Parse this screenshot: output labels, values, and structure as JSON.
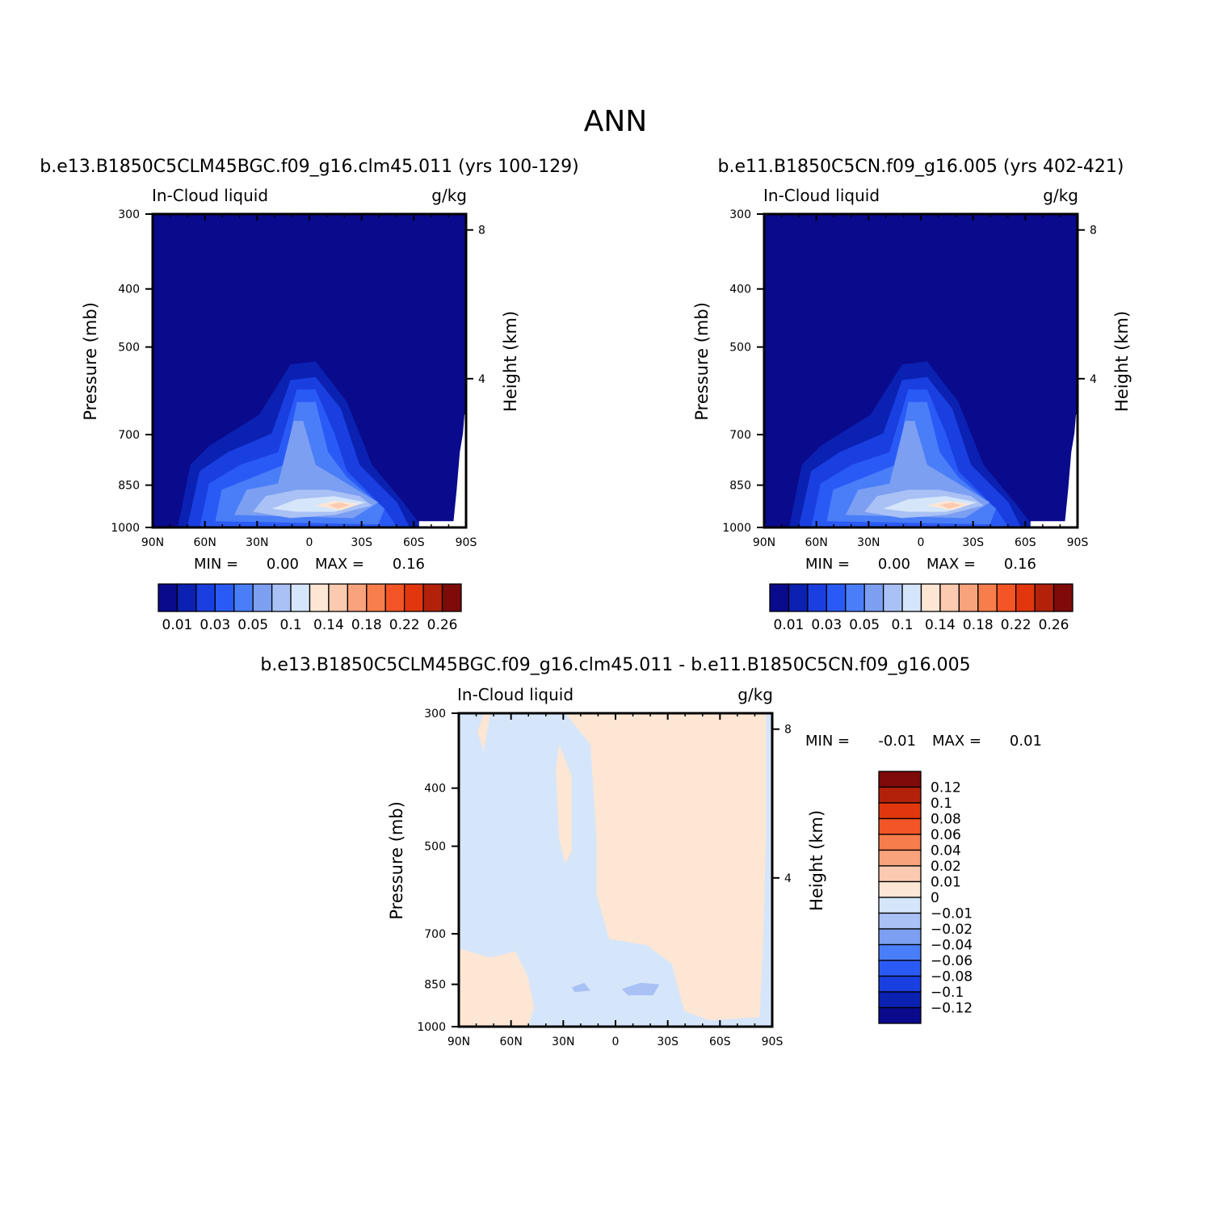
{
  "figure": {
    "title": "ANN"
  },
  "lat_tick_labels": [
    "90N",
    "60N",
    "30N",
    "0",
    "30S",
    "60S",
    "90S"
  ],
  "pressure_tick_labels": [
    "300",
    "400",
    "500",
    "700",
    "850",
    "1000"
  ],
  "height_tick_labels": [
    "8",
    "4"
  ],
  "axis_labels": {
    "left": "Pressure (mb)",
    "right": "Height (km)"
  },
  "colormaps": {
    "abs_colors": [
      "#0a0a8c",
      "#0a21b2",
      "#1a3fe0",
      "#2a5af6",
      "#4a7ef8",
      "#7c9ff2",
      "#a9c1f5",
      "#d6e6fa",
      "#fee6d4",
      "#fccab0",
      "#f9a37c",
      "#f77d4c",
      "#f45526",
      "#e2360e",
      "#b3210a",
      "#7e0a0a"
    ],
    "abs_labels": [
      "0.01",
      "0.03",
      "0.05",
      "0.1",
      "0.14",
      "0.18",
      "0.22",
      "0.26"
    ],
    "diff_colors": [
      "#0a0a8c",
      "#0a21b2",
      "#1a3fe0",
      "#2a5af6",
      "#4a7ef8",
      "#7c9ff2",
      "#a9c1f5",
      "#d6e6fa",
      "#fee6d4",
      "#fccab0",
      "#f9a37c",
      "#f77d4c",
      "#f45526",
      "#e2360e",
      "#b3210a",
      "#7e0a0a"
    ],
    "diff_labels": [
      "0.12",
      "0.1",
      "0.08",
      "0.06",
      "0.04",
      "0.02",
      "0.01",
      "0",
      "-0.01",
      "-0.02",
      "-0.04",
      "-0.06",
      "-0.08",
      "-0.1",
      "-0.12"
    ]
  },
  "panels": [
    {
      "title": "b.e13.B1850C5CLM45BGC.f09_g16.clm45.011 (yrs 100-129)",
      "left_sub": "In-Cloud liquid",
      "right_sub": "g/kg",
      "min_label": "MIN =",
      "min_value": "0.00",
      "max_label": "MAX =",
      "max_value": "0.16"
    },
    {
      "title": "b.e11.B1850C5CN.f09_g16.005 (yrs 402-421)",
      "left_sub": "In-Cloud liquid",
      "right_sub": "g/kg",
      "min_label": "MIN =",
      "min_value": "0.00",
      "max_label": "MAX =",
      "max_value": "0.16"
    },
    {
      "title": "b.e13.B1850C5CLM45BGC.f09_g16.clm45.011 - b.e11.B1850C5CN.f09_g16.005",
      "left_sub": "In-Cloud liquid",
      "right_sub": "g/kg",
      "min_label": "MIN =",
      "min_value": "-0.01",
      "max_label": "MAX =",
      "max_value": "0.01"
    }
  ],
  "chart_data": [
    {
      "type": "heatmap",
      "title": "b.e13.B1850C5CLM45BGC.f09_g16.clm45.011 (yrs 100-129)",
      "variable": "In-Cloud liquid",
      "units": "g/kg",
      "x_ticks": [
        "90N",
        "60N",
        "30N",
        "0",
        "30S",
        "60S",
        "90S"
      ],
      "y_ticks_pressure_mb": [
        300,
        400,
        500,
        700,
        850,
        1000
      ],
      "y_ticks_height_km": [
        8,
        4
      ],
      "ylabel": "Pressure (mb)",
      "ylabel_right": "Height (km)",
      "min": 0.0,
      "max": 0.16,
      "colorbar_labels": [
        0.01,
        0.03,
        0.05,
        0.1,
        0.14,
        0.18,
        0.22,
        0.26
      ]
    },
    {
      "type": "heatmap",
      "title": "b.e11.B1850C5CN.f09_g16.005 (yrs 402-421)",
      "variable": "In-Cloud liquid",
      "units": "g/kg",
      "x_ticks": [
        "90N",
        "60N",
        "30N",
        "0",
        "30S",
        "60S",
        "90S"
      ],
      "y_ticks_pressure_mb": [
        300,
        400,
        500,
        700,
        850,
        1000
      ],
      "y_ticks_height_km": [
        8,
        4
      ],
      "ylabel": "Pressure (mb)",
      "ylabel_right": "Height (km)",
      "min": 0.0,
      "max": 0.16,
      "colorbar_labels": [
        0.01,
        0.03,
        0.05,
        0.1,
        0.14,
        0.18,
        0.22,
        0.26
      ]
    },
    {
      "type": "heatmap",
      "title": "b.e13.B1850C5CLM45BGC.f09_g16.clm45.011 - b.e11.B1850C5CN.f09_g16.005",
      "variable": "In-Cloud liquid",
      "units": "g/kg",
      "x_ticks": [
        "90N",
        "60N",
        "30N",
        "0",
        "30S",
        "60S",
        "90S"
      ],
      "y_ticks_pressure_mb": [
        300,
        400,
        500,
        700,
        850,
        1000
      ],
      "y_ticks_height_km": [
        8,
        4
      ],
      "ylabel": "Pressure (mb)",
      "ylabel_right": "Height (km)",
      "min": -0.01,
      "max": 0.01,
      "colorbar_labels": [
        0.12,
        0.1,
        0.08,
        0.06,
        0.04,
        0.02,
        0.01,
        0,
        -0.01,
        -0.02,
        -0.04,
        -0.06,
        -0.08,
        -0.1,
        -0.12
      ]
    }
  ]
}
